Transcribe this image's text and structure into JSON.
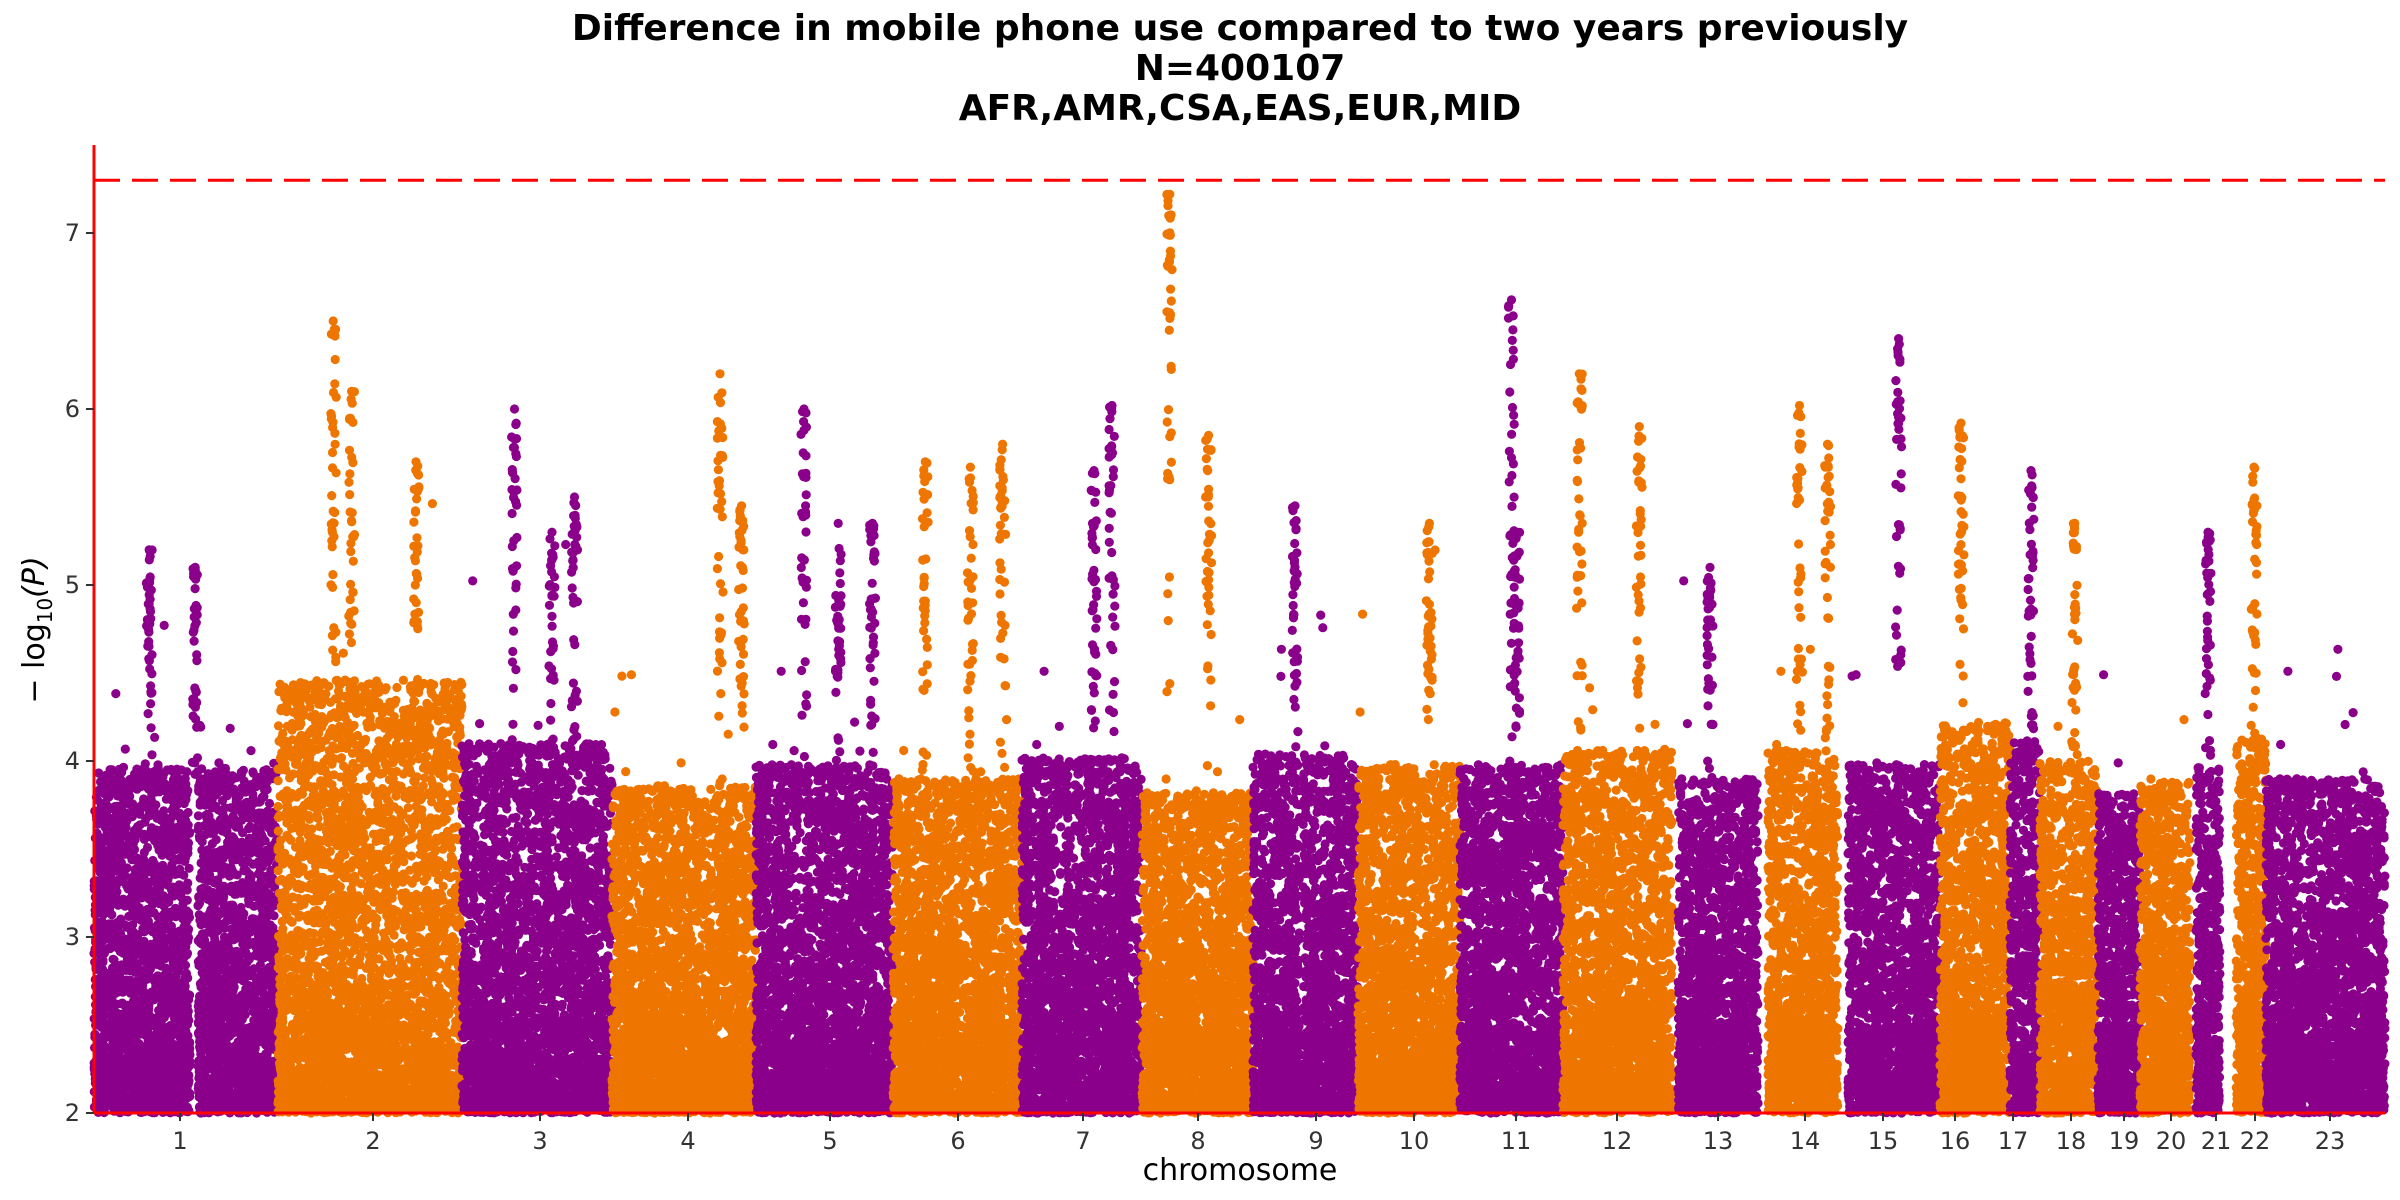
{
  "chart_data": {
    "type": "scatter",
    "title_lines": [
      "Difference in mobile phone use compared to two years previously",
      "N=400107",
      "AFR,AMR,CSA,EAS,EUR,MID"
    ],
    "xlabel": "chromosome",
    "ylabel_main": "− log",
    "ylabel_sub": "10",
    "ylabel_tail": "(P)",
    "ylim": [
      2,
      7.5
    ],
    "yticks": [
      2,
      3,
      4,
      5,
      6,
      7
    ],
    "significance_line": 7.3,
    "colors": {
      "odd": "#8b008b",
      "even": "#ee7600",
      "axis": "#ff0000",
      "threshold": "#ff0000"
    },
    "chromosomes": [
      {
        "label": "1",
        "top": 5.25,
        "peaks": [
          [
            0.3,
            5.2
          ],
          [
            0.55,
            5.1
          ]
        ]
      },
      {
        "label": "2",
        "top": 6.5,
        "peaks": [
          [
            0.3,
            6.5
          ],
          [
            0.4,
            6.1
          ],
          [
            0.75,
            5.7
          ]
        ]
      },
      {
        "label": "3",
        "top": 5.6,
        "peaks": [
          [
            0.35,
            6.0
          ],
          [
            0.6,
            5.3
          ],
          [
            0.75,
            5.5
          ]
        ]
      },
      {
        "label": "4",
        "top": 5.0,
        "peaks": [
          [
            0.75,
            6.2
          ],
          [
            0.9,
            5.45
          ]
        ]
      },
      {
        "label": "5",
        "top": 5.3,
        "peaks": [
          [
            0.35,
            6.0
          ],
          [
            0.6,
            5.35
          ],
          [
            0.85,
            5.35
          ]
        ]
      },
      {
        "label": "6",
        "top": 5.1,
        "peaks": [
          [
            0.25,
            5.7
          ],
          [
            0.6,
            5.67
          ],
          [
            0.85,
            5.8
          ]
        ]
      },
      {
        "label": "7",
        "top": 5.4,
        "peaks": [
          [
            0.6,
            5.65
          ],
          [
            0.75,
            6.02
          ]
        ]
      },
      {
        "label": "8",
        "top": 4.9,
        "peaks": [
          [
            0.25,
            7.22
          ],
          [
            0.6,
            5.85
          ]
        ]
      },
      {
        "label": "9",
        "top": 5.45,
        "peaks": [
          [
            0.4,
            5.45
          ]
        ]
      },
      {
        "label": "10",
        "top": 5.3,
        "peaks": [
          [
            0.7,
            5.35
          ]
        ]
      },
      {
        "label": "11",
        "top": 5.3,
        "peaks": [
          [
            0.5,
            6.62
          ],
          [
            0.55,
            5.3
          ]
        ]
      },
      {
        "label": "12",
        "top": 5.5,
        "peaks": [
          [
            0.15,
            6.2
          ],
          [
            0.7,
            5.9
          ]
        ]
      },
      {
        "label": "13",
        "top": 5.1,
        "peaks": [
          [
            0.4,
            5.1
          ]
        ]
      },
      {
        "label": "14",
        "top": 5.5,
        "peaks": [
          [
            0.45,
            6.02
          ],
          [
            0.85,
            5.8
          ]
        ]
      },
      {
        "label": "15",
        "top": 5.3,
        "peaks": [
          [
            0.55,
            6.4
          ]
        ]
      },
      {
        "label": "16",
        "top": 5.9,
        "peaks": [
          [
            0.3,
            5.92
          ]
        ]
      },
      {
        "label": "17",
        "top": 5.65,
        "peaks": [
          [
            0.7,
            5.65
          ]
        ]
      },
      {
        "label": "18",
        "top": 5.35,
        "peaks": [
          [
            0.6,
            5.35
          ]
        ]
      },
      {
        "label": "19",
        "top": 4.9,
        "peaks": []
      },
      {
        "label": "20",
        "top": 5.05,
        "peaks": []
      },
      {
        "label": "21",
        "top": 5.3,
        "peaks": [
          [
            0.5,
            5.3
          ]
        ]
      },
      {
        "label": "22",
        "top": 5.67,
        "peaks": [
          [
            0.6,
            5.67
          ]
        ]
      },
      {
        "label": "23",
        "top": 5.1,
        "peaks": []
      }
    ]
  }
}
